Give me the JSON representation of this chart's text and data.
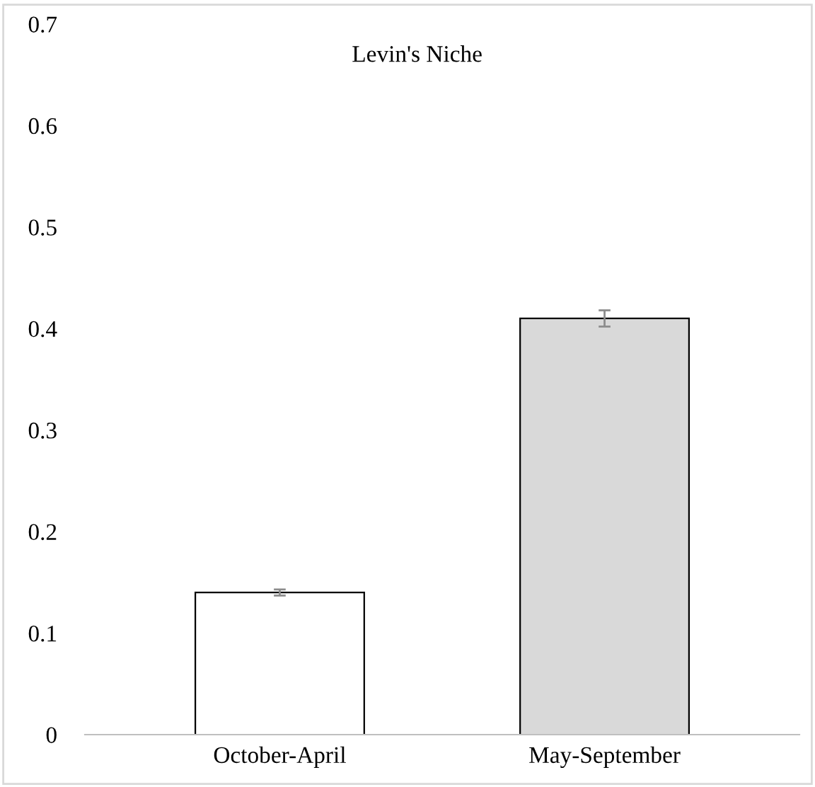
{
  "chart_data": {
    "type": "bar",
    "title": "Levin's Niche",
    "categories": [
      "October-April",
      "May-September"
    ],
    "values": [
      0.14,
      0.41
    ],
    "colors": [
      "#ffffff",
      "#d9d9d9"
    ],
    "errors": [
      0.003,
      0.008
    ],
    "ylim": [
      0,
      0.7
    ],
    "yticks": [
      0,
      0.1,
      0.2,
      0.3,
      0.4,
      0.5,
      0.6,
      0.7
    ],
    "grid": false,
    "legend": false
  }
}
